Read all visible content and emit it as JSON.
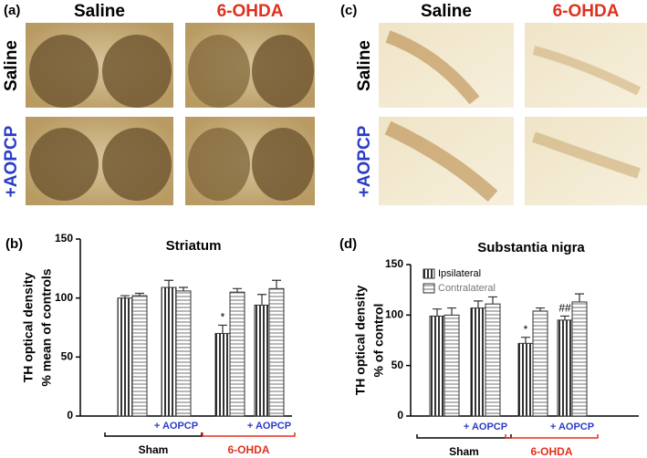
{
  "micrographs": [
    {
      "label": "(a)",
      "columns": [
        "Saline",
        "6-OHDA"
      ],
      "rows": [
        "Saline",
        "+AOPCP"
      ]
    },
    {
      "label": "(c)",
      "columns": [
        "Saline",
        "6-OHDA"
      ],
      "rows": [
        "Saline",
        "+AOPCP"
      ]
    }
  ],
  "chart_data": [
    {
      "type": "bar",
      "panel_label": "(b)",
      "title": "Striatum",
      "ylabel": [
        "TH optical density",
        "% mean of controls"
      ],
      "categories": [
        null,
        "+ AOPCP",
        null,
        "+ AOPCP"
      ],
      "groups": [
        {
          "label": "Sham",
          "color": "#000000"
        },
        {
          "label": "6-OHDA",
          "color": "#e0301e"
        }
      ],
      "series": [
        {
          "color": "#000000",
          "hatch": "vertical",
          "values": [
            100,
            109,
            70,
            94
          ],
          "errors": [
            2,
            6,
            7,
            9
          ],
          "markers": [
            null,
            null,
            "*",
            null
          ]
        },
        {
          "color": "#888888",
          "hatch": "horizontal",
          "values": [
            102,
            106,
            105,
            108
          ],
          "errors": [
            2,
            3,
            3,
            7
          ],
          "markers": [
            null,
            null,
            null,
            null
          ]
        }
      ],
      "ylim": [
        0,
        150
      ],
      "yticks": [
        0,
        50,
        100,
        150
      ],
      "legend": false
    },
    {
      "type": "bar",
      "panel_label": "(d)",
      "title": "Substantia nigra",
      "ylabel": [
        "TH optical density",
        "% of control"
      ],
      "categories": [
        null,
        "+ AOPCP",
        null,
        "+ AOPCP"
      ],
      "groups": [
        {
          "label": "Sham",
          "color": "#000000"
        },
        {
          "label": "6-OHDA",
          "color": "#e0301e"
        }
      ],
      "series": [
        {
          "name": "Ipsilateral",
          "color": "#000000",
          "hatch": "vertical",
          "values": [
            99,
            107,
            72,
            95
          ],
          "errors": [
            7,
            7,
            6,
            4
          ],
          "markers": [
            null,
            null,
            "*",
            "##"
          ]
        },
        {
          "name": "Contralateral",
          "color": "#888888",
          "hatch": "horizontal",
          "values": [
            100,
            111,
            104,
            113
          ],
          "errors": [
            7,
            7,
            3,
            8
          ],
          "markers": [
            null,
            null,
            null,
            null
          ]
        }
      ],
      "ylim": [
        0,
        150
      ],
      "yticks": [
        0,
        50,
        100,
        150
      ],
      "legend": true
    }
  ]
}
